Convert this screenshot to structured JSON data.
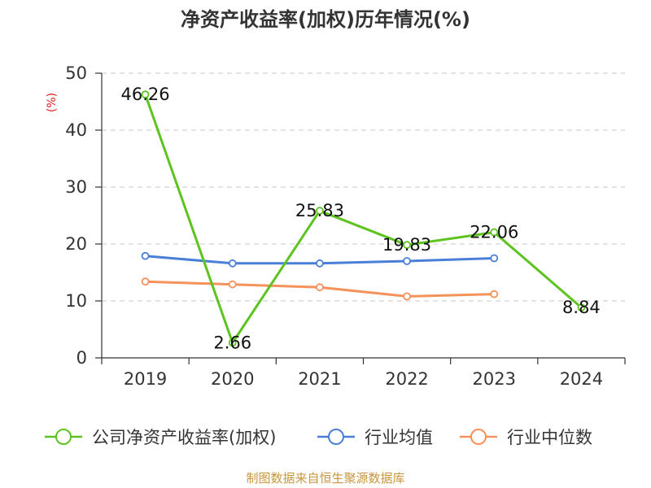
{
  "title": "净资产收益率(加权)历年情况(%)",
  "unit_label": "(%)",
  "source": "制图数据来自恒生聚源数据库",
  "chart_data": {
    "type": "line",
    "title": "净资产收益率(加权)历年情况(%)",
    "xlabel": "",
    "ylabel": "(%)",
    "categories": [
      "2019",
      "2020",
      "2021",
      "2022",
      "2023",
      "2024"
    ],
    "ylim": [
      0,
      50
    ],
    "yticks": [
      0,
      10,
      20,
      30,
      40,
      50
    ],
    "grid": true,
    "legend_position": "bottom",
    "series": [
      {
        "name": "公司净资产收益率(加权)",
        "color": "#5dc41f",
        "values": [
          46.26,
          2.66,
          25.83,
          19.83,
          22.06,
          8.84
        ],
        "labels": [
          "46.26",
          "2.66",
          "25.83",
          "19.83",
          "22.06",
          "8.84"
        ]
      },
      {
        "name": "行业均值",
        "color": "#4a7fd8",
        "values": [
          17.9,
          16.6,
          16.6,
          17.0,
          17.5,
          null
        ],
        "labels": null
      },
      {
        "name": "行业中位数",
        "color": "#f5915a",
        "values": [
          13.4,
          12.9,
          12.4,
          10.8,
          11.2,
          null
        ],
        "labels": null
      }
    ]
  }
}
